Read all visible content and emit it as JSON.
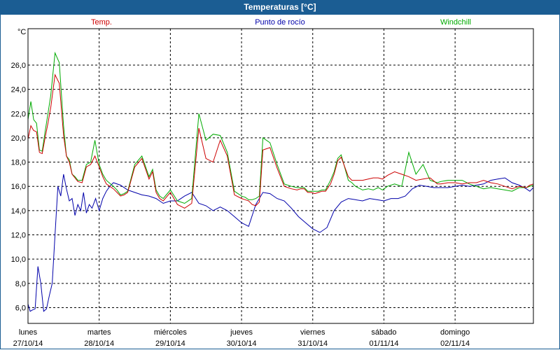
{
  "window": {
    "title": "Temperaturas [°C]"
  },
  "chart_data": {
    "type": "line",
    "title": "Temperaturas [°C]",
    "ylabel": "°C",
    "ylim": [
      4.7,
      29.0
    ],
    "yticks": [
      "6,0",
      "8,0",
      "10,0",
      "12,0",
      "14,0",
      "16,0",
      "18,0",
      "20,0",
      "22,0",
      "24,0",
      "26,0"
    ],
    "ytick_values": [
      6,
      8,
      10,
      12,
      14,
      16,
      18,
      20,
      22,
      24,
      26
    ],
    "xlim": [
      0,
      7.1
    ],
    "x_days": [
      {
        "day": "lunes",
        "date": "27/10/14"
      },
      {
        "day": "martes",
        "date": "28/10/14"
      },
      {
        "day": "miércoles",
        "date": "29/10/14"
      },
      {
        "day": "jueves",
        "date": "30/10/14"
      },
      {
        "day": "viernes",
        "date": "31/10/14"
      },
      {
        "day": "sábado",
        "date": "01/11/14"
      },
      {
        "day": "domingo",
        "date": "02/11/14"
      }
    ],
    "grid": true,
    "series": [
      {
        "name": "Temp.",
        "color": "#cc0000",
        "x": [
          0,
          0.04,
          0.08,
          0.12,
          0.16,
          0.2,
          0.24,
          0.28,
          0.32,
          0.38,
          0.44,
          0.5,
          0.54,
          0.58,
          0.62,
          0.66,
          0.7,
          0.76,
          0.82,
          0.88,
          0.94,
          1.0,
          1.05,
          1.1,
          1.2,
          1.25,
          1.3,
          1.35,
          1.4,
          1.5,
          1.6,
          1.7,
          1.75,
          1.8,
          1.85,
          1.9,
          2.0,
          2.1,
          2.2,
          2.3,
          2.4,
          2.5,
          2.6,
          2.7,
          2.8,
          2.9,
          3.0,
          3.05,
          3.1,
          3.15,
          3.2,
          3.25,
          3.3,
          3.4,
          3.5,
          3.6,
          3.7,
          3.78,
          3.83,
          3.88,
          3.93,
          3.98,
          4.03,
          4.08,
          4.13,
          4.18,
          4.25,
          4.3,
          4.35,
          4.4,
          4.5,
          4.55,
          4.6,
          4.7,
          4.78,
          4.85,
          4.92,
          4.98,
          5.05,
          5.15,
          5.25,
          5.35,
          5.45,
          5.55,
          5.65,
          5.75,
          5.8,
          5.9,
          6.0,
          6.1,
          6.2,
          6.3,
          6.35,
          6.4,
          6.5,
          6.6,
          6.7,
          6.8,
          6.9,
          7.0,
          7.05,
          7.1
        ],
        "y": [
          19.9,
          21.0,
          20.6,
          20.5,
          18.8,
          18.7,
          20.0,
          21.2,
          22.5,
          25.2,
          24.5,
          20.2,
          18.5,
          18.0,
          17.0,
          16.7,
          16.4,
          16.3,
          17.6,
          17.8,
          18.5,
          17.6,
          16.8,
          16.2,
          15.8,
          15.5,
          15.2,
          15.3,
          15.5,
          17.6,
          18.3,
          16.6,
          17.2,
          15.5,
          15.0,
          14.8,
          15.5,
          14.5,
          14.2,
          14.6,
          20.8,
          18.3,
          18.0,
          19.8,
          18.5,
          15.3,
          15.0,
          14.9,
          14.8,
          14.5,
          14.4,
          14.7,
          19.0,
          19.2,
          17.5,
          16.0,
          15.8,
          15.7,
          15.8,
          15.8,
          15.5,
          15.5,
          15.4,
          15.5,
          15.6,
          15.6,
          16.2,
          17.0,
          18.1,
          18.4,
          16.8,
          16.5,
          16.5,
          16.5,
          16.6,
          16.7,
          16.7,
          16.6,
          16.9,
          17.2,
          17.0,
          16.8,
          16.5,
          16.6,
          16.7,
          16.2,
          16.2,
          16.3,
          16.3,
          16.2,
          16.3,
          16.3,
          16.4,
          16.5,
          16.3,
          16.2,
          16.0,
          15.8,
          16.0,
          15.9,
          16.1,
          16.2
        ]
      },
      {
        "name": "Punto de rocío",
        "color": "#0000aa",
        "x": [
          0,
          0.03,
          0.06,
          0.1,
          0.14,
          0.18,
          0.22,
          0.26,
          0.3,
          0.34,
          0.38,
          0.42,
          0.46,
          0.5,
          0.54,
          0.58,
          0.62,
          0.66,
          0.7,
          0.74,
          0.78,
          0.82,
          0.86,
          0.9,
          0.95,
          1.0,
          1.05,
          1.1,
          1.15,
          1.2,
          1.3,
          1.4,
          1.5,
          1.6,
          1.7,
          1.8,
          1.9,
          2.0,
          2.1,
          2.2,
          2.3,
          2.4,
          2.5,
          2.6,
          2.7,
          2.8,
          2.9,
          3.0,
          3.1,
          3.2,
          3.3,
          3.4,
          3.5,
          3.6,
          3.7,
          3.8,
          3.9,
          4.0,
          4.1,
          4.2,
          4.3,
          4.4,
          4.5,
          4.6,
          4.7,
          4.8,
          4.9,
          5.0,
          5.1,
          5.2,
          5.3,
          5.4,
          5.5,
          5.6,
          5.7,
          5.8,
          5.9,
          6.0,
          6.1,
          6.2,
          6.3,
          6.4,
          6.5,
          6.6,
          6.7,
          6.8,
          6.9,
          7.0,
          7.05,
          7.1
        ],
        "y": [
          6.3,
          5.7,
          5.8,
          5.9,
          9.4,
          8.0,
          5.7,
          5.9,
          7.0,
          8.0,
          12.0,
          16.0,
          15.2,
          17.0,
          15.8,
          14.8,
          15.0,
          13.6,
          14.5,
          14.0,
          15.5,
          13.8,
          14.5,
          14.2,
          15.0,
          14.0,
          15.0,
          15.6,
          16.0,
          16.3,
          16.1,
          15.7,
          15.5,
          15.3,
          15.2,
          15.0,
          14.6,
          14.8,
          14.8,
          15.2,
          15.5,
          14.6,
          14.4,
          14.0,
          14.3,
          14.0,
          13.5,
          13.0,
          12.7,
          14.5,
          15.5,
          15.4,
          15.0,
          14.8,
          14.2,
          13.5,
          13.0,
          12.5,
          12.2,
          12.6,
          14.0,
          14.7,
          15.0,
          14.9,
          14.8,
          15.0,
          14.9,
          14.8,
          15.0,
          15.0,
          15.2,
          15.8,
          16.1,
          16.0,
          15.9,
          15.9,
          15.9,
          16.0,
          16.1,
          16.0,
          16.1,
          16.2,
          16.5,
          16.6,
          16.7,
          16.3,
          16.1,
          15.8,
          15.6,
          15.9
        ]
      },
      {
        "name": "Windchill",
        "color": "#00aa00",
        "x": [
          0,
          0.04,
          0.08,
          0.12,
          0.16,
          0.2,
          0.24,
          0.28,
          0.32,
          0.38,
          0.44,
          0.5,
          0.54,
          0.58,
          0.62,
          0.66,
          0.7,
          0.76,
          0.82,
          0.88,
          0.94,
          1.0,
          1.05,
          1.1,
          1.2,
          1.25,
          1.3,
          1.35,
          1.4,
          1.5,
          1.6,
          1.7,
          1.75,
          1.8,
          1.85,
          1.9,
          2.0,
          2.1,
          2.2,
          2.3,
          2.4,
          2.5,
          2.6,
          2.7,
          2.8,
          2.9,
          3.0,
          3.05,
          3.1,
          3.15,
          3.2,
          3.25,
          3.3,
          3.4,
          3.5,
          3.6,
          3.7,
          3.78,
          3.83,
          3.88,
          3.93,
          3.98,
          4.03,
          4.08,
          4.13,
          4.18,
          4.25,
          4.3,
          4.35,
          4.4,
          4.5,
          4.55,
          4.6,
          4.7,
          4.78,
          4.85,
          4.92,
          4.98,
          5.05,
          5.15,
          5.25,
          5.35,
          5.45,
          5.55,
          5.65,
          5.75,
          5.8,
          5.9,
          6.0,
          6.1,
          6.2,
          6.3,
          6.35,
          6.4,
          6.5,
          6.6,
          6.7,
          6.8,
          6.9,
          7.0,
          7.05,
          7.1
        ],
        "y": [
          21.5,
          23.0,
          21.5,
          21.2,
          19.0,
          18.9,
          20.5,
          22.0,
          23.5,
          27.0,
          26.2,
          21.0,
          18.5,
          18.2,
          17.0,
          16.8,
          16.5,
          16.5,
          17.8,
          18.0,
          19.8,
          17.8,
          17.0,
          16.5,
          16.0,
          15.7,
          15.3,
          15.4,
          15.6,
          17.8,
          18.5,
          16.8,
          17.4,
          15.7,
          15.2,
          15.0,
          15.7,
          14.8,
          14.6,
          15.0,
          22.0,
          19.8,
          20.3,
          20.2,
          18.8,
          15.6,
          15.2,
          15.1,
          14.9,
          14.9,
          15.0,
          15.2,
          20.0,
          19.6,
          17.8,
          16.2,
          16.0,
          15.9,
          15.9,
          15.9,
          15.6,
          15.6,
          15.6,
          15.6,
          15.7,
          15.7,
          16.5,
          17.2,
          18.3,
          18.6,
          16.5,
          16.3,
          16.0,
          15.7,
          15.8,
          15.7,
          15.9,
          15.7,
          16.0,
          16.2,
          16.0,
          18.8,
          17.0,
          17.8,
          16.5,
          16.3,
          16.4,
          16.5,
          16.5,
          16.5,
          16.2,
          16.0,
          15.9,
          15.8,
          15.9,
          15.8,
          15.7,
          15.6,
          15.9,
          15.9,
          16.0,
          16.1
        ]
      }
    ]
  }
}
